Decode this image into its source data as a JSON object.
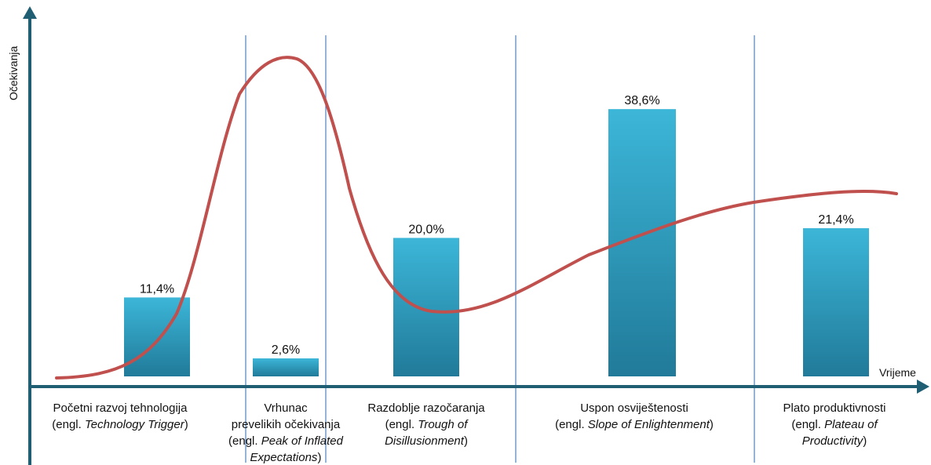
{
  "chart_data": {
    "type": "bar",
    "xlabel": "Vrijeme",
    "ylabel": "Očekivanja",
    "categories": [
      [
        "Početni razvoj tehnologija",
        "(engl. |Technology Trigger|)"
      ],
      [
        "Vrhunac",
        "prevelikih očekivanja",
        "(engl. |Peak of Inflated",
        "|Expectations|)"
      ],
      [
        "Razdoblje razočaranja",
        "(engl. |Trough of",
        "|Disillusionment|)"
      ],
      [
        "Uspon osviještenosti",
        "(engl. |Slope  of  Enlightenment|)"
      ],
      [
        "Plato  produktivnosti",
        "(engl. |Plateau  of",
        "|Productivity|)"
      ]
    ],
    "values": [
      11.4,
      2.6,
      20.0,
      38.6,
      21.4
    ],
    "value_labels": [
      "11,4%",
      "2,6%",
      "20,0%",
      "38,6%",
      "21,4%"
    ],
    "ylim": [
      0,
      50
    ],
    "grid": false,
    "curve": {
      "name": "hype-cycle",
      "color": "#c0504d",
      "shape": "Gartner hype cycle"
    },
    "colors": {
      "bar_top": "#3cb6d8",
      "bar_bottom": "#217a99",
      "axis": "#1f5e73",
      "separator": "#4f81bd"
    }
  }
}
